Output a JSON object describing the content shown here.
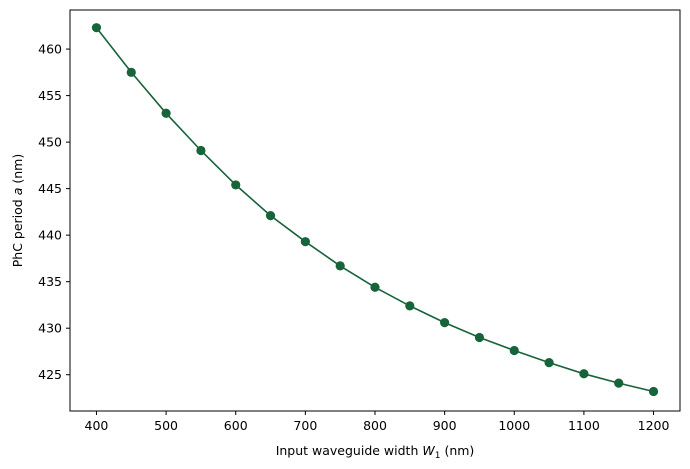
{
  "chart_data": {
    "type": "line",
    "title": "",
    "xlabel": {
      "pre": "Input waveguide width ",
      "var": "W",
      "sub": "1",
      "post": " (nm)"
    },
    "ylabel": {
      "pre": "PhC period ",
      "var": "a",
      "post": " (nm)"
    },
    "xlim": [
      362,
      1238
    ],
    "ylim": [
      421.1,
      464.2
    ],
    "xticks": [
      400,
      500,
      600,
      700,
      800,
      900,
      1000,
      1100,
      1200
    ],
    "yticks": [
      425,
      430,
      435,
      440,
      445,
      450,
      455,
      460
    ],
    "grid": false,
    "legend": "none",
    "series": [
      {
        "color": "#17633a",
        "marker": "circle",
        "x": [
          400,
          450,
          500,
          550,
          600,
          650,
          700,
          750,
          800,
          850,
          900,
          950,
          1000,
          1050,
          1100,
          1150,
          1200
        ],
        "y": [
          462.3,
          457.5,
          453.1,
          449.1,
          445.4,
          442.1,
          439.3,
          436.7,
          434.4,
          432.4,
          430.6,
          429.0,
          427.6,
          426.3,
          425.1,
          424.1,
          423.2
        ]
      }
    ]
  }
}
